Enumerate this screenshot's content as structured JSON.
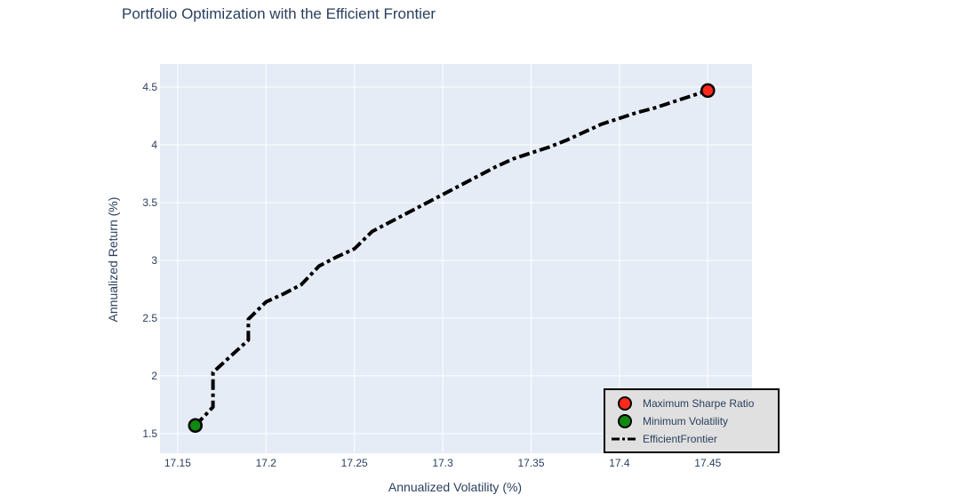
{
  "chart_data": {
    "type": "line",
    "title": "Portfolio Optimization with the Efficient Frontier",
    "xlabel": "Annualized Volatility (%)",
    "ylabel": "Annualized Return (%)",
    "xlim": [
      17.14,
      17.475
    ],
    "ylim": [
      1.33,
      4.7
    ],
    "x_ticks": [
      17.15,
      17.2,
      17.25,
      17.3,
      17.35,
      17.4,
      17.45
    ],
    "x_tick_labels": [
      "17.15",
      "17.2",
      "17.25",
      "17.3",
      "17.35",
      "17.4",
      "17.45"
    ],
    "y_ticks": [
      1.5,
      2,
      2.5,
      3,
      3.5,
      4,
      4.5
    ],
    "y_tick_labels": [
      "1.5",
      "2",
      "2.5",
      "3",
      "3.5",
      "4",
      "4.5"
    ],
    "grid": true,
    "legend_position": "bottom-right",
    "plot_bg": "#e5ecf6",
    "series": [
      {
        "name": "Maximum Sharpe Ratio",
        "type": "scatter",
        "color": "#ff2a1a",
        "x": [
          17.45
        ],
        "y": [
          4.47
        ]
      },
      {
        "name": "Minimum Volatility",
        "type": "scatter",
        "color": "#118811",
        "x": [
          17.16
        ],
        "y": [
          1.57
        ]
      },
      {
        "name": "EfficientFrontier",
        "type": "line",
        "color": "#000000",
        "dash": "dashdot",
        "x": [
          17.16,
          17.17,
          17.17,
          17.18,
          17.19,
          17.19,
          17.2,
          17.21,
          17.22,
          17.23,
          17.24,
          17.25,
          17.26,
          17.27,
          17.28,
          17.29,
          17.3,
          17.31,
          17.32,
          17.33,
          17.34,
          17.35,
          17.36,
          17.37,
          17.38,
          17.39,
          17.4,
          17.41,
          17.42,
          17.43,
          17.44,
          17.45
        ],
        "y": [
          1.57,
          1.73,
          2.03,
          2.17,
          2.31,
          2.49,
          2.64,
          2.71,
          2.79,
          2.95,
          3.03,
          3.1,
          3.25,
          3.33,
          3.41,
          3.49,
          3.57,
          3.65,
          3.73,
          3.81,
          3.88,
          3.93,
          3.98,
          4.04,
          4.11,
          4.18,
          4.23,
          4.28,
          4.32,
          4.37,
          4.42,
          4.47
        ]
      }
    ]
  }
}
